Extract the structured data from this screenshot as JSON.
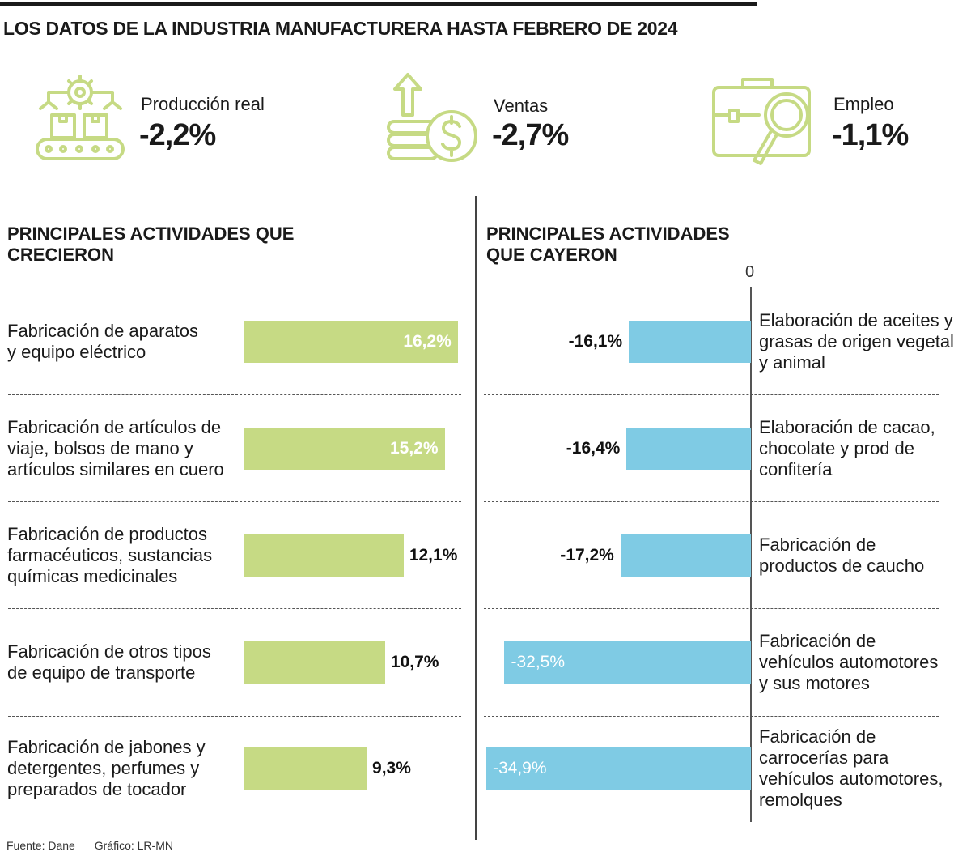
{
  "title": "LOS DATOS DE LA INDUSTRIA MANUFACTURERA HASTA FEBRERO DE 2024",
  "kpis": [
    {
      "icon": "factory-conveyor-icon",
      "label": "Producción real",
      "value": "-2,2%"
    },
    {
      "icon": "coins-arrow-up-icon",
      "label": "Ventas",
      "value": "-2,7%"
    },
    {
      "icon": "briefcase-magnifier-icon",
      "label": "Empleo",
      "value": "-1,1%"
    }
  ],
  "colors": {
    "green": "#c6da84",
    "blue": "#7fcbe4",
    "icon": "#c6da84"
  },
  "chart_data": [
    {
      "type": "bar",
      "orientation": "horizontal",
      "title": "PRINCIPALES ACTIVIDADES QUE CRECIERON",
      "categories": [
        "Fabricación de aparatos y equipo eléctrico",
        "Fabricación de artículos de viaje, bolsos de mano y artículos similares en cuero",
        "Fabricación de productos farmacéuticos, sustancias químicas medicinales",
        "Fabricación de otros tipos de equipo de transporte",
        "Fabricación de jabones y detergentes, perfumes y preparados de tocador"
      ],
      "category_lines": [
        [
          "Fabricación de aparatos",
          "y equipo eléctrico"
        ],
        [
          "Fabricación de artículos de",
          "viaje, bolsos de mano y",
          "artículos similares en cuero"
        ],
        [
          "Fabricación de productos",
          "farmacéuticos, sustancias",
          "químicas medicinales"
        ],
        [
          "Fabricación de otros tipos",
          "de equipo de transporte"
        ],
        [
          "Fabricación de jabones y",
          "detergentes, perfumes y",
          "preparados de tocador"
        ]
      ],
      "values": [
        16.2,
        15.2,
        12.1,
        10.7,
        9.3
      ],
      "labels": [
        "16,2%",
        "15,2%",
        "12,1%",
        "10,7%",
        "9,3%"
      ],
      "color": "#c6da84"
    },
    {
      "type": "bar",
      "orientation": "horizontal",
      "title": "PRINCIPALES ACTIVIDADES QUE CAYERON",
      "zero_label": "0",
      "categories": [
        "Elaboración de aceites y grasas de origen vegetal y animal",
        "Elaboración de cacao, chocolate y prod de confitería",
        "Fabricación de productos de caucho",
        "Fabricación de vehículos automotores y sus motores",
        "Fabricación de carrocerías para vehículos automotores, remolques"
      ],
      "category_lines": [
        [
          "Elaboración de aceites y",
          "grasas de origen vegetal",
          "y animal"
        ],
        [
          "Elaboración de cacao,",
          "chocolate y prod de",
          "confitería"
        ],
        [
          "Fabricación de",
          "productos de caucho"
        ],
        [
          "Fabricación de",
          "vehículos automotores",
          "y sus motores"
        ],
        [
          "Fabricación de",
          "carrocerías para",
          "vehículos automotores,",
          "remolques"
        ]
      ],
      "values": [
        -16.1,
        -16.4,
        -17.2,
        -32.5,
        -34.9
      ],
      "labels": [
        "-16,1%",
        "-16,4%",
        "-17,2%",
        "-32,5%",
        "-34,9%"
      ],
      "color": "#7fcbe4"
    }
  ],
  "footer": {
    "source": "Fuente: Dane",
    "credit": "Gráfico: LR-MN"
  }
}
